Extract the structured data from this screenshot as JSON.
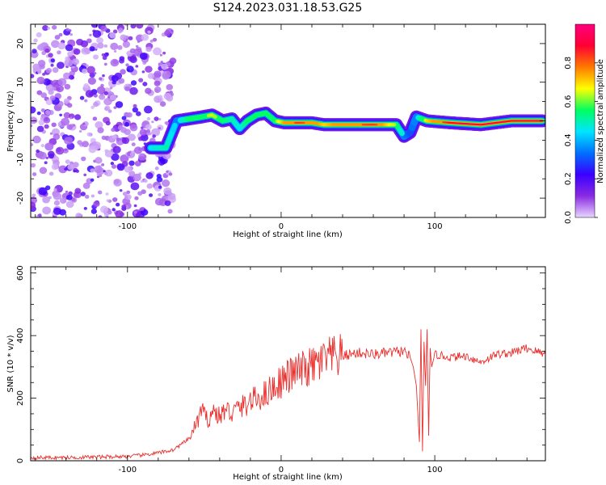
{
  "title": "S124.2023.031.18.53.G25",
  "chart_data": [
    {
      "type": "heatmap",
      "xlabel": "Height of straight line (km)",
      "ylabel": "Frequency (Hz)",
      "xlim": [
        -163,
        172
      ],
      "ylim": [
        -25,
        25
      ],
      "xticks": [
        -100,
        0,
        100
      ],
      "yticks": [
        -20,
        -10,
        0,
        10,
        20
      ],
      "colorbar": {
        "label": "Normalized spectral amplitude",
        "range": [
          0,
          1
        ],
        "ticks": [
          "0.0",
          "0.2",
          "0.4",
          "0.6",
          "0.8"
        ],
        "colormap": [
          "#e8d6ff",
          "#8a2be2",
          "#3a00ff",
          "#0070ff",
          "#00e5ff",
          "#00ff60",
          "#ffff00",
          "#ff7a00",
          "#ff0033",
          "#ff0080"
        ]
      },
      "track": {
        "x": [
          -85,
          -75,
          -68,
          -60,
          -52,
          -45,
          -38,
          -32,
          -27,
          -22,
          -16,
          -10,
          -4,
          2,
          10,
          20,
          28,
          40,
          60,
          75,
          80,
          84,
          88,
          95,
          110,
          130,
          150,
          170
        ],
        "y": [
          -7,
          -7,
          0,
          0.5,
          1,
          1.5,
          0,
          0.5,
          -2,
          0,
          1.5,
          2,
          0,
          -0.5,
          -0.5,
          -0.5,
          -1,
          -1,
          -1,
          -1,
          -4,
          -3,
          1,
          0,
          -0.5,
          -1,
          0,
          0
        ],
        "amplitude": [
          0.45,
          0.5,
          0.4,
          0.55,
          0.6,
          0.65,
          0.55,
          0.5,
          0.45,
          0.55,
          0.6,
          0.55,
          0.6,
          0.75,
          0.85,
          0.8,
          0.7,
          0.8,
          0.85,
          0.6,
          0.35,
          0.3,
          0.4,
          0.7,
          0.9,
          0.95,
          0.9,
          0.95
        ]
      },
      "noise_region_x": [
        -163,
        -70
      ]
    },
    {
      "type": "line",
      "xlabel": "Height of straight line (km)",
      "ylabel": "SNR (10 * v/v)",
      "xlim": [
        -163,
        172
      ],
      "ylim": [
        0,
        620
      ],
      "xticks": [
        -100,
        0,
        100
      ],
      "yticks": [
        0,
        200,
        400,
        600
      ],
      "series_color": "#e8312f",
      "series": [
        {
          "x": [
            -163,
            -140,
            -120,
            -100,
            -90,
            -80,
            -70,
            -60,
            -55,
            -52,
            -48,
            -44,
            -40,
            -36,
            -32,
            -28,
            -24,
            -20,
            -15,
            -10,
            -5,
            0,
            5,
            10,
            15,
            20,
            30,
            40,
            50,
            60,
            70,
            80,
            84,
            86,
            88,
            90,
            91,
            92,
            93,
            94,
            95,
            96,
            97,
            98,
            100,
            110,
            120,
            130,
            140,
            150,
            160,
            172
          ],
          "y": [
            10,
            10,
            12,
            14,
            18,
            25,
            35,
            70,
            120,
            160,
            130,
            160,
            140,
            165,
            150,
            170,
            175,
            190,
            200,
            215,
            235,
            255,
            270,
            285,
            290,
            300,
            325,
            335,
            345,
            340,
            345,
            350,
            330,
            300,
            240,
            60,
            420,
            30,
            380,
            240,
            420,
            80,
            360,
            300,
            340,
            330,
            335,
            315,
            340,
            345,
            360,
            340
          ]
        }
      ]
    }
  ]
}
